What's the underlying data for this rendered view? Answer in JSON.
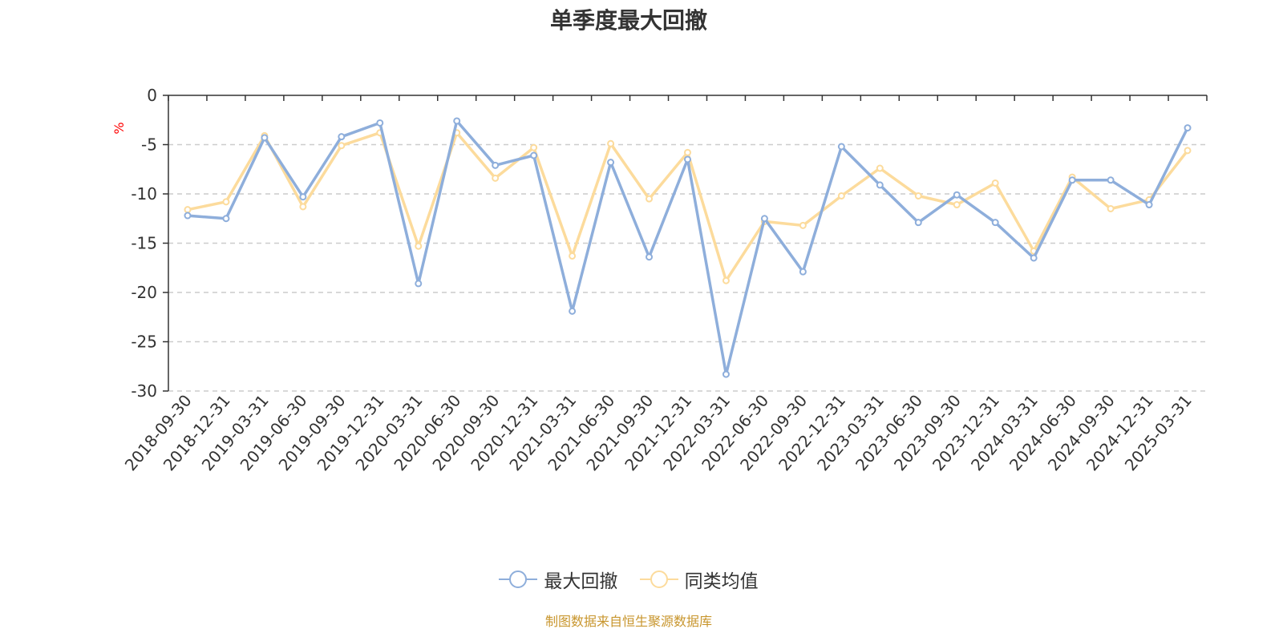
{
  "chart_data": {
    "type": "line",
    "title": "单季度最大回撤",
    "y_unit": "%",
    "ylim": [
      -30,
      0
    ],
    "y_ticks": [
      0,
      -5,
      -10,
      -15,
      -20,
      -25,
      -30
    ],
    "grid": "horizontal dashed",
    "legend_position": "bottom",
    "categories": [
      "2018-09-30",
      "2018-12-31",
      "2019-03-31",
      "2019-06-30",
      "2019-09-30",
      "2019-12-31",
      "2020-03-31",
      "2020-06-30",
      "2020-09-30",
      "2020-12-31",
      "2021-03-31",
      "2021-06-30",
      "2021-09-30",
      "2021-12-31",
      "2022-03-31",
      "2022-06-30",
      "2022-09-30",
      "2022-12-31",
      "2023-03-31",
      "2023-06-30",
      "2023-09-30",
      "2023-12-31",
      "2024-03-31",
      "2024-06-30",
      "2024-09-30",
      "2024-12-31",
      "2025-03-31"
    ],
    "series": [
      {
        "name": "最大回撤",
        "color": "#8eaedb",
        "values": [
          -12.2,
          -12.5,
          -4.3,
          -10.3,
          -4.2,
          -2.8,
          -19.1,
          -2.6,
          -7.1,
          -6.1,
          -21.9,
          -6.8,
          -16.4,
          -6.5,
          -28.3,
          -12.5,
          -17.9,
          -5.2,
          -9.1,
          -12.9,
          -10.1,
          -12.9,
          -16.5,
          -8.6,
          -8.6,
          -11.1,
          -3.3
        ]
      },
      {
        "name": "同类均值",
        "color": "#fcdb9c",
        "values": [
          -11.6,
          -10.8,
          -4.1,
          -11.3,
          -5.1,
          -3.8,
          -15.3,
          -3.8,
          -8.4,
          -5.3,
          -16.3,
          -4.9,
          -10.5,
          -5.8,
          -18.8,
          -12.8,
          -13.2,
          -10.2,
          -7.4,
          -10.2,
          -11.1,
          -8.9,
          -15.8,
          -8.3,
          -11.5,
          -10.6,
          -5.6
        ]
      }
    ]
  },
  "footer": {
    "source": "制图数据来自恒生聚源数据库",
    "source_color": "#c8962e"
  }
}
